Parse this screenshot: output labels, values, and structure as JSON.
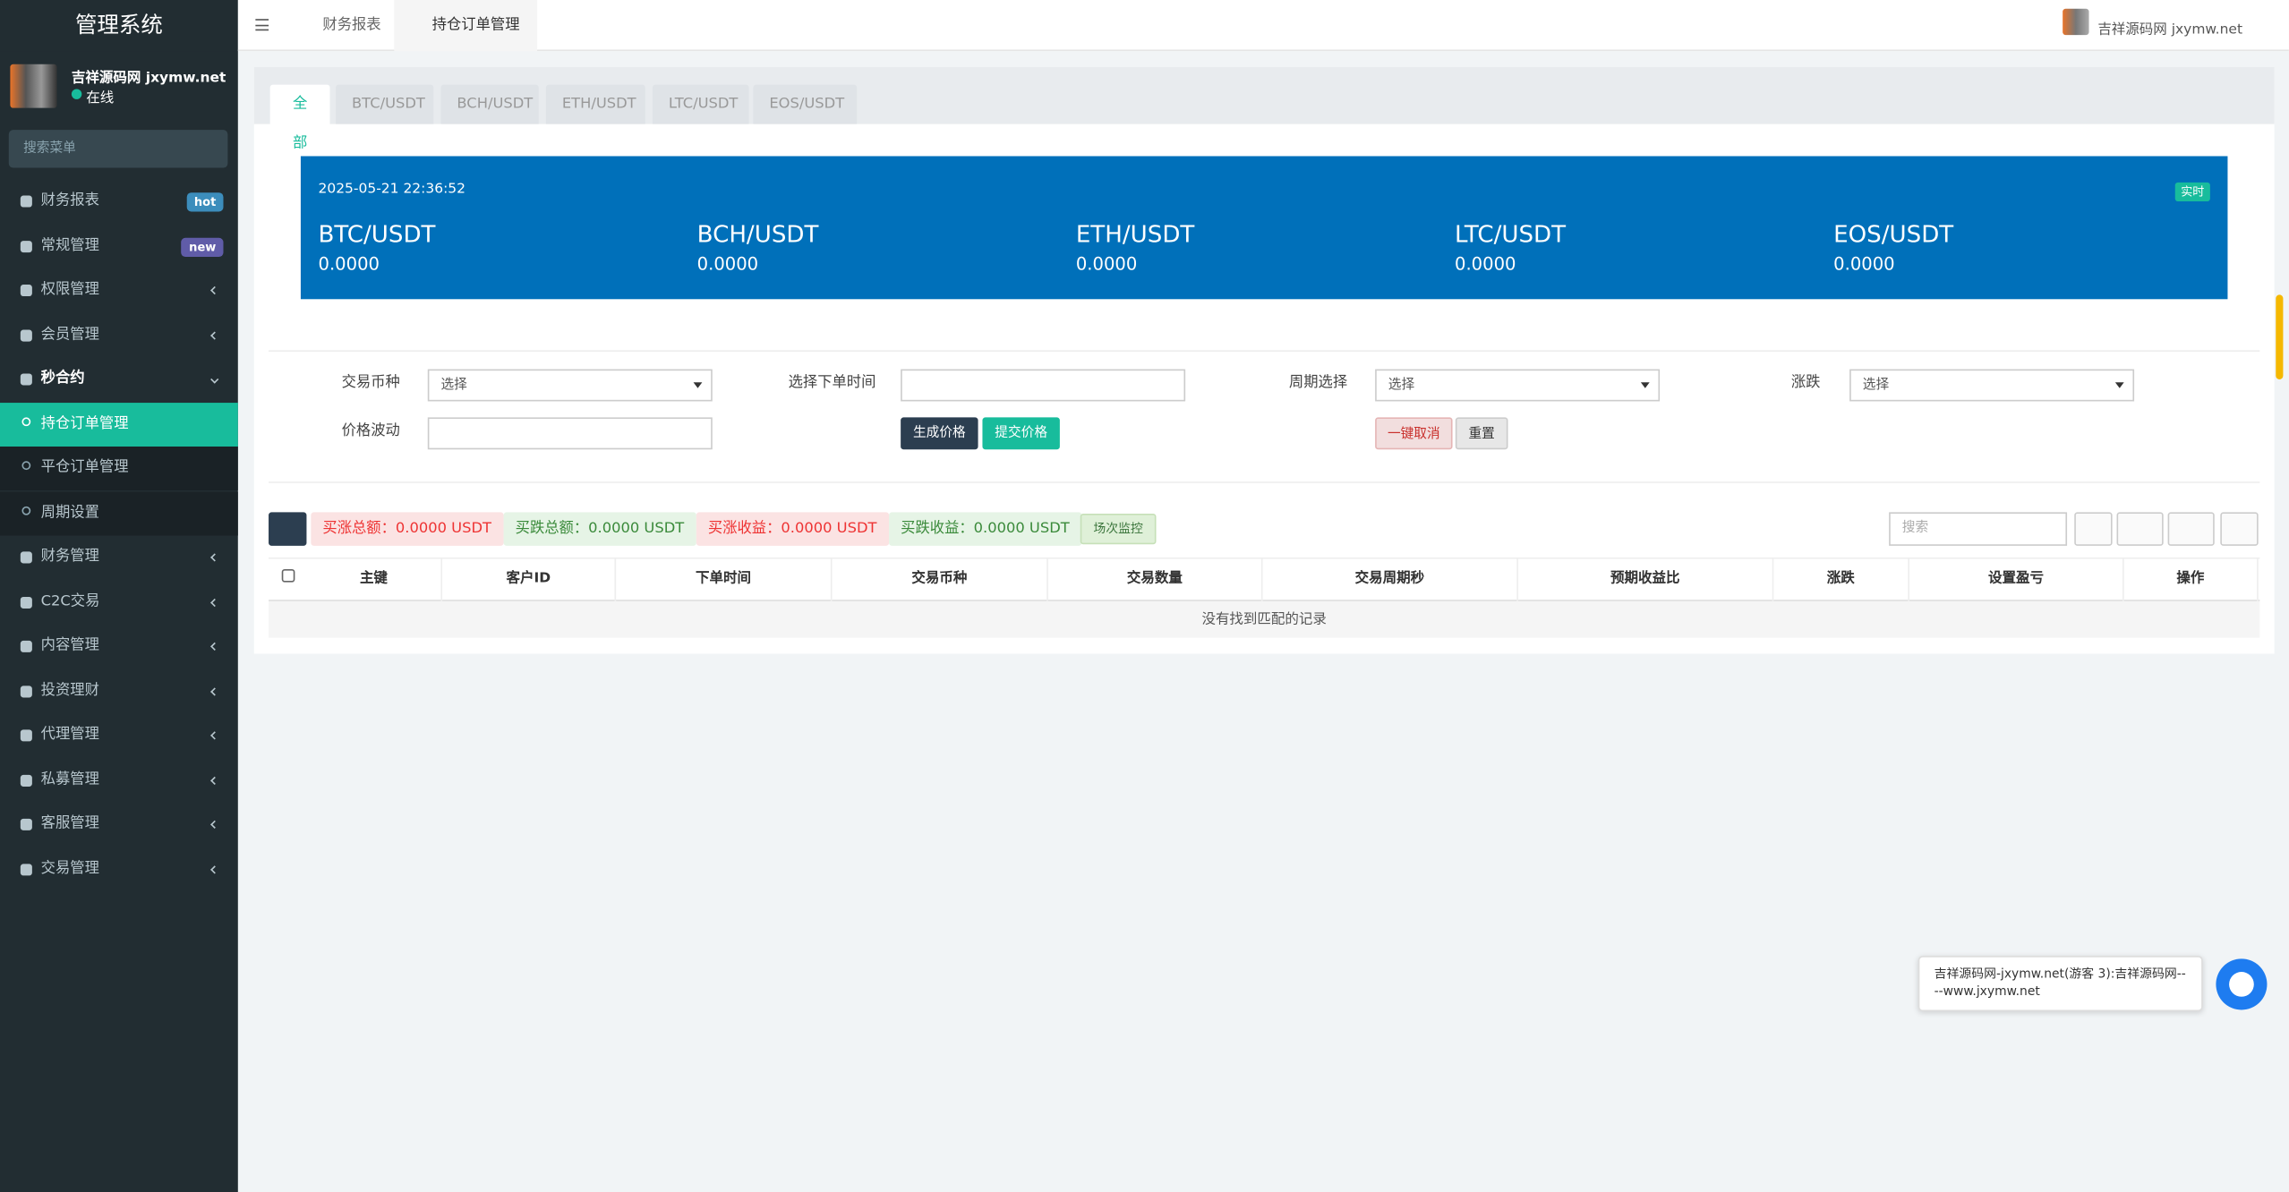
{
  "sidebar": {
    "brand": "管理系统",
    "user": "吉祥源码网 jxymw.net",
    "status": "在线",
    "search_placeholder": "搜索菜单",
    "menu": [
      {
        "label": "财务报表",
        "badge": "hot"
      },
      {
        "label": "常规管理",
        "badge": "new"
      },
      {
        "label": "权限管理"
      },
      {
        "label": "会员管理"
      },
      {
        "label": "秒合约",
        "children": [
          "持仓订单管理",
          "平仓订单管理",
          "周期设置"
        ]
      },
      {
        "label": "财务管理"
      },
      {
        "label": "C2C交易"
      },
      {
        "label": "内容管理"
      },
      {
        "label": "投资理财"
      },
      {
        "label": "代理管理"
      },
      {
        "label": "私募管理"
      },
      {
        "label": "客服管理"
      },
      {
        "label": "交易管理"
      }
    ]
  },
  "topbar": {
    "tabs": [
      "财务报表",
      "持仓订单管理"
    ],
    "user": "吉祥源码网 jxymw.net"
  },
  "content": {
    "tabs": [
      "全部",
      "BTC/USDT",
      "BCH/USDT",
      "ETH/USDT",
      "LTC/USDT",
      "EOS/USDT"
    ],
    "ticker": {
      "time": "2025-05-21 22:36:52",
      "badge": "实时",
      "pairs": [
        {
          "name": "BTC/USDT",
          "price": "0.0000"
        },
        {
          "name": "BCH/USDT",
          "price": "0.0000"
        },
        {
          "name": "ETH/USDT",
          "price": "0.0000"
        },
        {
          "name": "LTC/USDT",
          "price": "0.0000"
        },
        {
          "name": "EOS/USDT",
          "price": "0.0000"
        }
      ]
    },
    "filters": {
      "labels": [
        "交易币种",
        "选择下单时间",
        "周期选择",
        "涨跌",
        "价格波动"
      ],
      "select_placeholder": "选择",
      "buttons": [
        "生成价格",
        "提交价格",
        "一键取消",
        "重置"
      ]
    },
    "toolbar": {
      "stats": [
        "买涨总额：0.0000 USDT",
        "买跌总额：0.0000 USDT",
        "买涨收益：0.0000 USDT",
        "买跌收益：0.0000 USDT"
      ],
      "monitor": "场次监控",
      "search_placeholder": "搜索"
    },
    "table": {
      "columns": [
        "主键",
        "客户ID",
        "下单时间",
        "交易币种",
        "交易数量",
        "交易周期秒",
        "预期收益比",
        "涨跌",
        "设置盈亏",
        "操作"
      ],
      "empty": "没有找到匹配的记录"
    }
  },
  "chat": {
    "message": "吉祥源码网-jxymw.net(游客 3):吉祥源码网----www.jxymw.net"
  }
}
